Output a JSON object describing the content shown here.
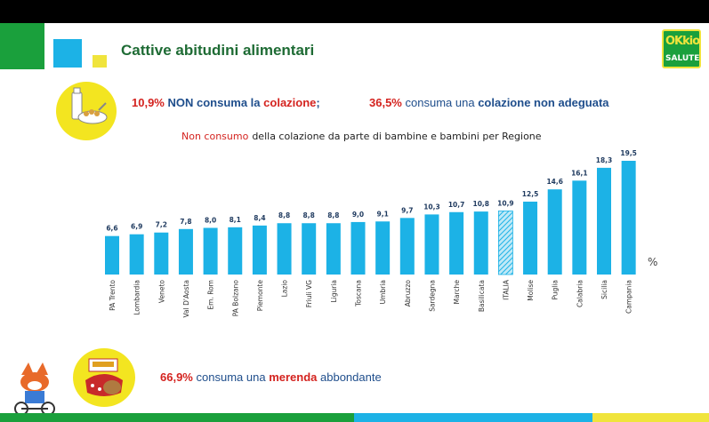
{
  "header": {
    "title": "Cattive abitudini alimentari",
    "logo_top": "OKkio",
    "logo_bottom": "SALUTE"
  },
  "stats": {
    "no_breakfast_value": "10,9%",
    "no_breakfast_pre": "NON consuma la",
    "no_breakfast_word": "colazione",
    "no_breakfast_sep": ";",
    "inadequate_value": "36,5%",
    "inadequate_pre": "consuma una",
    "inadequate_word": "colazione non adeguata",
    "snack_value": "66,9%",
    "snack_pre": "consuma una",
    "snack_word": "merenda",
    "snack_post": "abbondante"
  },
  "chart_data": {
    "type": "bar",
    "title_red": "Non consumo",
    "title_rest": "della colazione da parte di bambine e bambini per Regione",
    "unit": "%",
    "categories": [
      "PA Trento",
      "Lombardia",
      "Veneto",
      "Val D'Aosta",
      "Em. Rom",
      "PA Bolzano",
      "Piemonte",
      "Lazio",
      "Friuli VG",
      "Liguria",
      "Toscana",
      "Umbria",
      "Abruzzo",
      "Sardegna",
      "Marche",
      "Basilicata",
      "ITALIA",
      "Molise",
      "Puglia",
      "Calabria",
      "Sicilia",
      "Campania"
    ],
    "values": [
      6.6,
      6.9,
      7.2,
      7.8,
      8.0,
      8.1,
      8.4,
      8.8,
      8.8,
      8.8,
      9.0,
      9.1,
      9.7,
      10.3,
      10.7,
      10.8,
      10.9,
      12.5,
      14.6,
      16.1,
      18.3,
      19.5
    ],
    "value_labels": [
      "6,6",
      "6,9",
      "7,2",
      "7,8",
      "8,0",
      "8,1",
      "8,4",
      "8,8",
      "8,8",
      "8,8",
      "9,0",
      "9,1",
      "9,7",
      "10,3",
      "10,7",
      "10,8",
      "10,9",
      "12,5",
      "14,6",
      "16,1",
      "18,3",
      "19,5"
    ],
    "highlight": "ITALIA",
    "ylim": [
      0,
      20
    ],
    "colors": {
      "bar": "#1cb2e6",
      "highlight": "#1cb2e6",
      "label": "#1f3a5f"
    }
  },
  "colors": {
    "green": "#1aa03c",
    "blue": "#1cb2e6",
    "yellow": "#f0e43c"
  }
}
